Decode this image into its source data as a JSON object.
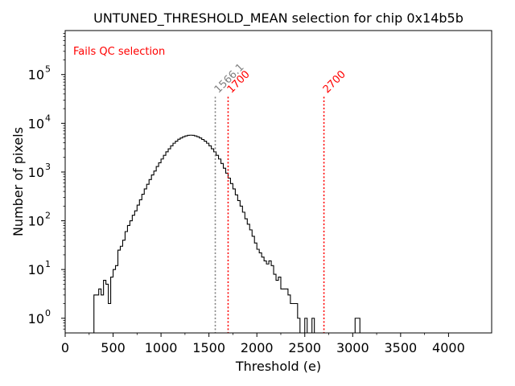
{
  "chart_data": {
    "type": "histogram",
    "title": "UNTUNED_THRESHOLD_MEAN selection for chip 0x14b5b",
    "xlabel": "Threshold (e)",
    "ylabel": "Number of pixels",
    "xlim": [
      0,
      4450
    ],
    "ylim": [
      0.5,
      800000
    ],
    "yscale": "log",
    "bin_width": 25,
    "x_ticks": [
      0,
      500,
      1000,
      1500,
      2000,
      2500,
      3000,
      3500,
      4000
    ],
    "x_tick_labels": [
      "0",
      "500",
      "1000",
      "1500",
      "2000",
      "2500",
      "3000",
      "3500",
      "4000"
    ],
    "y_ticks": [
      1,
      10,
      100,
      1000,
      10000,
      100000
    ],
    "y_tick_labels": [
      {
        "base": "10",
        "exp": "0"
      },
      {
        "base": "10",
        "exp": "1"
      },
      {
        "base": "10",
        "exp": "2"
      },
      {
        "base": "10",
        "exp": "3"
      },
      {
        "base": "10",
        "exp": "4"
      },
      {
        "base": "10",
        "exp": "5"
      }
    ],
    "annotation": {
      "text": "Fails QC selection",
      "color": "#ff0000"
    },
    "vlines": [
      {
        "x": 1566.1,
        "label": "1566.1",
        "color": "#808080"
      },
      {
        "x": 1700,
        "label": "1700",
        "color": "#ff0000"
      },
      {
        "x": 2700,
        "label": "2700",
        "color": "#ff0000"
      }
    ],
    "histogram": {
      "color": "#000000",
      "x_start": 275,
      "x_end": 3475,
      "counts": [
        0.5,
        3,
        3,
        4,
        3,
        6,
        5,
        2,
        7,
        10,
        12,
        25,
        30,
        40,
        60,
        80,
        100,
        130,
        160,
        210,
        270,
        350,
        450,
        560,
        700,
        870,
        1050,
        1300,
        1550,
        1850,
        2200,
        2600,
        3000,
        3450,
        3900,
        4300,
        4700,
        5000,
        5300,
        5500,
        5650,
        5700,
        5650,
        5500,
        5300,
        5000,
        4650,
        4300,
        3900,
        3450,
        3000,
        2600,
        2200,
        1850,
        1500,
        1200,
        950,
        750,
        580,
        450,
        340,
        260,
        200,
        150,
        110,
        85,
        65,
        48,
        35,
        26,
        22,
        18,
        15,
        13,
        15,
        12,
        8,
        6,
        7,
        4,
        4,
        4,
        3,
        2,
        2,
        2,
        1,
        0.5,
        0.5,
        1,
        0.5,
        0.5,
        1,
        0.5,
        0.5,
        0.5,
        0.5,
        0.5,
        0.5,
        0.5,
        0.5,
        0.5,
        0.5,
        0.5,
        0.5,
        0.5,
        0.5,
        0.5,
        0.5,
        0.5,
        1,
        1,
        0.5,
        0.5,
        0.5,
        0.5,
        0.5,
        0.5,
        0.5,
        0.5,
        0.5,
        0.5,
        0.5,
        0.5,
        0.5,
        0.5,
        0.5,
        0.5,
        0.5,
        0.5
      ]
    }
  }
}
